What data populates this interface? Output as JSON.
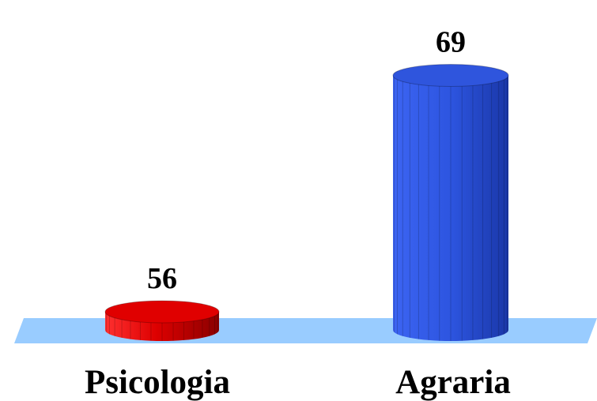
{
  "chart_data": {
    "type": "bar",
    "style": "3d-cylinder",
    "categories": [
      "Psicologia",
      "Agraria"
    ],
    "values": [
      56,
      69
    ],
    "colors": [
      "#e00000",
      "#2f55dd"
    ],
    "floor_color": "#99ccff",
    "data_labels": [
      "56",
      "69"
    ],
    "ylim": [
      55,
      69.5
    ],
    "title": "",
    "xlabel": "",
    "ylabel": ""
  }
}
